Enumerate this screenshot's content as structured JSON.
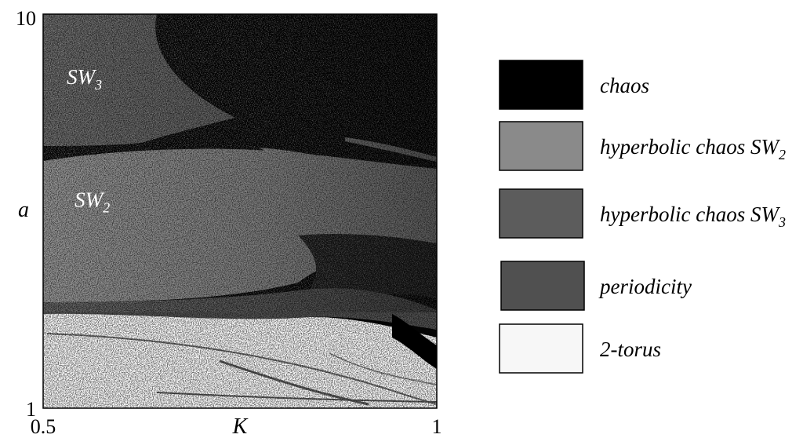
{
  "chart_data": {
    "type": "heatmap",
    "title": "",
    "xlabel": "K",
    "ylabel": "a",
    "xlim": [
      0.5,
      1
    ],
    "ylim": [
      1,
      10
    ],
    "x_ticks": [
      "0.5",
      "1"
    ],
    "y_ticks": [
      "10",
      "1"
    ],
    "region_labels": [
      {
        "name": "SW",
        "sub": "3",
        "K": 0.53,
        "a": 8.4
      },
      {
        "name": "SW",
        "sub": "2",
        "K": 0.54,
        "a": 5.6
      }
    ],
    "legend": [
      {
        "label": "chaos",
        "sub": "",
        "color": "#000000"
      },
      {
        "label": "hyperbolic chaos SW",
        "sub": "2",
        "color": "#8a8a8a"
      },
      {
        "label": "hyperbolic chaos SW",
        "sub": "3",
        "color": "#5c5c5c"
      },
      {
        "label": "periodicity",
        "sub": "",
        "color": "#505050"
      },
      {
        "label": "2-torus",
        "sub": "",
        "color": "#f7f7f7"
      }
    ],
    "legend_position": "right"
  }
}
